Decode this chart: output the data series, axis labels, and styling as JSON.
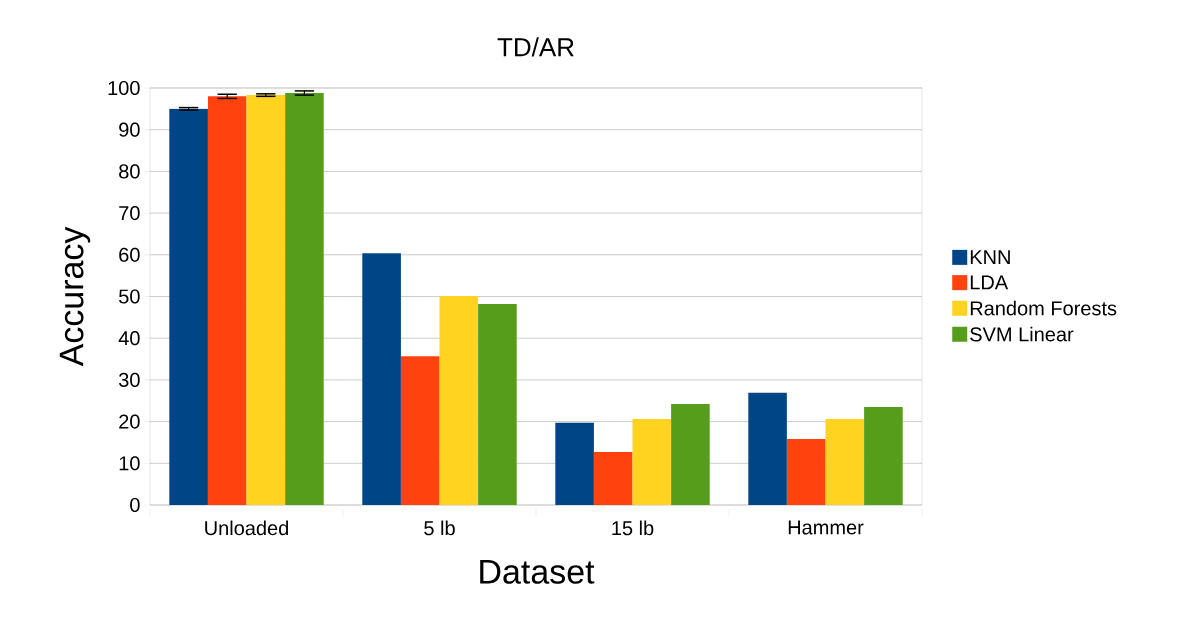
{
  "chart_data": {
    "type": "bar",
    "title": "TD/AR",
    "xlabel": "Dataset",
    "ylabel": "Accuracy",
    "categories": [
      "Unloaded",
      "5 lb",
      "15 lb",
      "Hammer"
    ],
    "series": [
      {
        "name": "KNN",
        "color": "#004586",
        "values": [
          95,
          60.4,
          19.7,
          26.9
        ],
        "errors": [
          0.3,
          null,
          null,
          null
        ]
      },
      {
        "name": "LDA",
        "color": "#ff420e",
        "values": [
          98,
          35.7,
          12.7,
          15.8
        ],
        "errors": [
          0.5,
          null,
          null,
          null
        ]
      },
      {
        "name": "Random Forests",
        "color": "#ffd320",
        "values": [
          98.3,
          50.1,
          20.6,
          20.6
        ],
        "errors": [
          0.3,
          null,
          null,
          null
        ]
      },
      {
        "name": "SVM Linear",
        "color": "#579d1c",
        "values": [
          98.8,
          48.2,
          24.2,
          23.5
        ],
        "errors": [
          0.5,
          null,
          null,
          null
        ]
      }
    ],
    "ylim": [
      0,
      100
    ],
    "yticks": [
      0,
      10,
      20,
      30,
      40,
      50,
      60,
      70,
      80,
      90,
      100
    ],
    "grid": "y",
    "legend": "right"
  }
}
